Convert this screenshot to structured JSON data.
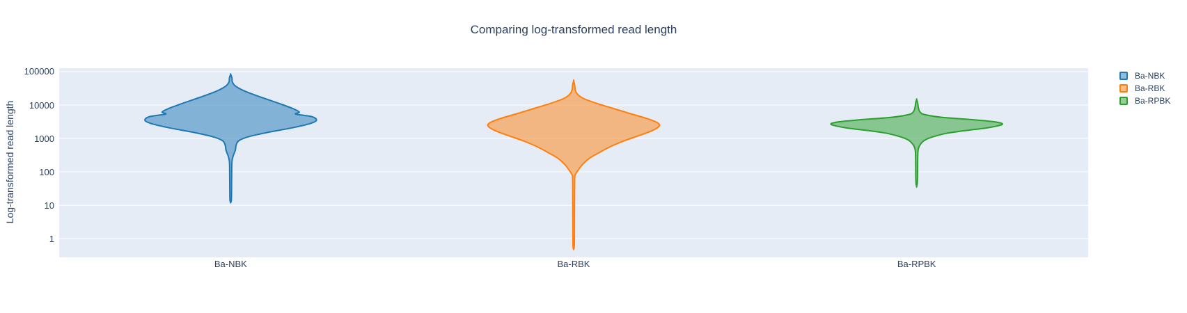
{
  "chart_data": {
    "type": "violin",
    "title": "Comparing log-transformed read length",
    "xlabel": "",
    "ylabel": "Log-transformed read length",
    "plot_bg": "#e5ecf6",
    "grid_color": "#ffffff",
    "text_color": "#2a3f5f",
    "yaxis": {
      "scale": "log",
      "tick_values": [
        1,
        10,
        100,
        1000,
        10000,
        100000
      ],
      "tick_labels": [
        "1",
        "10",
        "100",
        "1000",
        "10000",
        "100000"
      ],
      "range_log10": [
        -0.56,
        5.104
      ],
      "grid": true
    },
    "categories": [
      "Ba-NBK",
      "Ba-RBK",
      "Ba-RPBK"
    ],
    "legend": {
      "position": "top-right",
      "entries": [
        "Ba-NBK",
        "Ba-RBK",
        "Ba-RPBK"
      ]
    },
    "series": [
      {
        "name": "Ba-NBK",
        "line_color": "#1f77b4",
        "fill_color": "rgba(31,119,180,0.5)",
        "readout": {
          "min": 12,
          "mode": 3500,
          "max": 83000
        },
        "density_profile_log10": [
          [
            4.92,
            0
          ],
          [
            4.81,
            0.015
          ],
          [
            4.69,
            0.02
          ],
          [
            4.56,
            0.06
          ],
          [
            4.4,
            0.18
          ],
          [
            4.23,
            0.36
          ],
          [
            4.06,
            0.55
          ],
          [
            3.9,
            0.72
          ],
          [
            3.79,
            0.8
          ],
          [
            3.73,
            0.76
          ],
          [
            3.65,
            0.95
          ],
          [
            3.54,
            1.0
          ],
          [
            3.44,
            0.92
          ],
          [
            3.31,
            0.7
          ],
          [
            3.19,
            0.45
          ],
          [
            3.06,
            0.22
          ],
          [
            2.94,
            0.1
          ],
          [
            2.81,
            0.065
          ],
          [
            2.65,
            0.055
          ],
          [
            2.48,
            0.03
          ],
          [
            2.31,
            0.015
          ],
          [
            1.94,
            0.012
          ],
          [
            1.42,
            0.01
          ],
          [
            1.15,
            0.008
          ],
          [
            1.08,
            0
          ]
        ]
      },
      {
        "name": "Ba-RBK",
        "line_color": "#ff7f0e",
        "fill_color": "rgba(255,127,14,0.5)",
        "readout": {
          "min": 0.5,
          "mode": 2400,
          "max": 54000
        },
        "density_profile_log10": [
          [
            4.73,
            0
          ],
          [
            4.6,
            0.012
          ],
          [
            4.44,
            0.02
          ],
          [
            4.31,
            0.05
          ],
          [
            4.19,
            0.12
          ],
          [
            4.04,
            0.28
          ],
          [
            3.9,
            0.46
          ],
          [
            3.75,
            0.65
          ],
          [
            3.6,
            0.85
          ],
          [
            3.48,
            0.97
          ],
          [
            3.38,
            1.0
          ],
          [
            3.25,
            0.93
          ],
          [
            3.1,
            0.78
          ],
          [
            2.94,
            0.6
          ],
          [
            2.77,
            0.44
          ],
          [
            2.58,
            0.3
          ],
          [
            2.4,
            0.18
          ],
          [
            2.21,
            0.1
          ],
          [
            2.04,
            0.05
          ],
          [
            1.92,
            0.02
          ],
          [
            1.77,
            0.012
          ],
          [
            0.9,
            0.01
          ],
          [
            -0.15,
            0.008
          ],
          [
            -0.31,
            0
          ]
        ]
      },
      {
        "name": "Ba-RPBK",
        "line_color": "#2ca02c",
        "fill_color": "rgba(44,160,44,0.5)",
        "readout": {
          "min": 36,
          "mode": 2750,
          "max": 14800
        },
        "density_profile_log10": [
          [
            4.17,
            0
          ],
          [
            4.06,
            0.012
          ],
          [
            3.92,
            0.02
          ],
          [
            3.79,
            0.04
          ],
          [
            3.71,
            0.1
          ],
          [
            3.63,
            0.3
          ],
          [
            3.56,
            0.66
          ],
          [
            3.5,
            0.9
          ],
          [
            3.44,
            1.0
          ],
          [
            3.38,
            0.95
          ],
          [
            3.31,
            0.8
          ],
          [
            3.23,
            0.55
          ],
          [
            3.15,
            0.34
          ],
          [
            3.04,
            0.18
          ],
          [
            2.94,
            0.09
          ],
          [
            2.81,
            0.04
          ],
          [
            2.69,
            0.02
          ],
          [
            2.52,
            0.013
          ],
          [
            1.94,
            0.01
          ],
          [
            1.67,
            0.008
          ],
          [
            1.56,
            0
          ]
        ]
      }
    ]
  }
}
